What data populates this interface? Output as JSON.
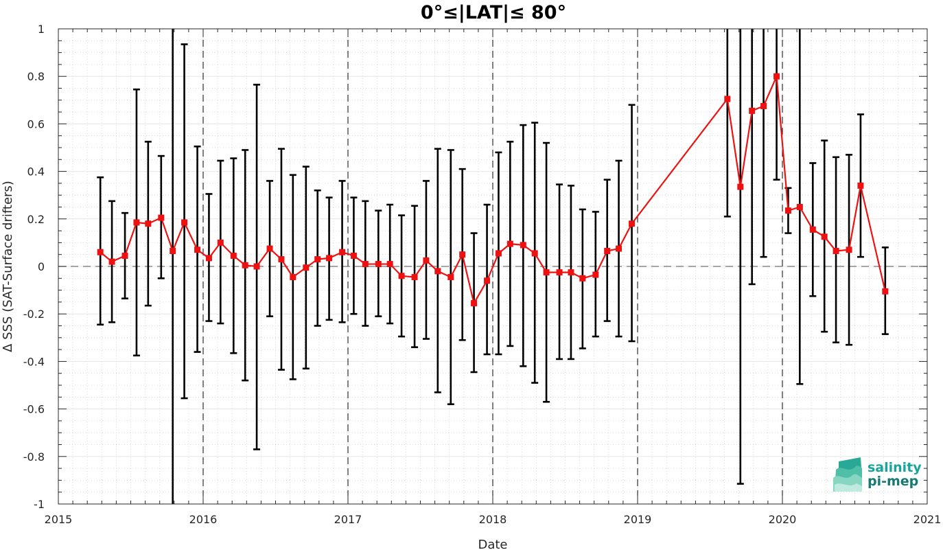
{
  "chart_data": {
    "type": "line",
    "title": "0°≤|LAT|≤ 80°",
    "xlabel": "Date",
    "ylabel": "Δ SSS (SAT-Surface drifters)",
    "xlim": [
      2015,
      2021
    ],
    "ylim": [
      -1,
      1
    ],
    "x_ticks": [
      "2015",
      "2016",
      "2017",
      "2018",
      "2019",
      "2020",
      "2021"
    ],
    "y_ticks": [
      "-1",
      "-0.8",
      "-0.6",
      "-0.4",
      "-0.2",
      "0",
      "0.2",
      "0.4",
      "0.6",
      "0.8",
      "1"
    ],
    "grid": true,
    "reference_line": 0,
    "year_separators": [
      2016,
      2017,
      2018,
      2019,
      2020
    ],
    "series": [
      {
        "color": "#ee1111",
        "marker": "square",
        "errorbar_color": "#000000",
        "points": [
          {
            "x": 2015.29,
            "y": 0.06,
            "lo": -0.245,
            "hi": 0.375
          },
          {
            "x": 2015.37,
            "y": 0.02,
            "lo": -0.235,
            "hi": 0.275
          },
          {
            "x": 2015.46,
            "y": 0.045,
            "lo": -0.135,
            "hi": 0.225
          },
          {
            "x": 2015.54,
            "y": 0.185,
            "lo": -0.375,
            "hi": 0.745
          },
          {
            "x": 2015.62,
            "y": 0.18,
            "lo": -0.165,
            "hi": 0.525
          },
          {
            "x": 2015.71,
            "y": 0.205,
            "lo": -0.05,
            "hi": 0.465
          },
          {
            "x": 2015.79,
            "y": 0.065,
            "lo": -1.0,
            "hi": 1.0
          },
          {
            "x": 2015.87,
            "y": 0.185,
            "lo": -0.555,
            "hi": 0.935
          },
          {
            "x": 2015.96,
            "y": 0.07,
            "lo": -0.36,
            "hi": 0.505
          },
          {
            "x": 2016.04,
            "y": 0.035,
            "lo": -0.23,
            "hi": 0.305
          },
          {
            "x": 2016.12,
            "y": 0.1,
            "lo": -0.24,
            "hi": 0.445
          },
          {
            "x": 2016.21,
            "y": 0.045,
            "lo": -0.365,
            "hi": 0.455
          },
          {
            "x": 2016.29,
            "y": 0.005,
            "lo": -0.48,
            "hi": 0.49
          },
          {
            "x": 2016.37,
            "y": 0.0,
            "lo": -0.77,
            "hi": 0.765
          },
          {
            "x": 2016.46,
            "y": 0.075,
            "lo": -0.21,
            "hi": 0.36
          },
          {
            "x": 2016.54,
            "y": 0.03,
            "lo": -0.435,
            "hi": 0.495
          },
          {
            "x": 2016.62,
            "y": -0.045,
            "lo": -0.475,
            "hi": 0.385
          },
          {
            "x": 2016.71,
            "y": -0.005,
            "lo": -0.43,
            "hi": 0.42
          },
          {
            "x": 2016.79,
            "y": 0.03,
            "lo": -0.25,
            "hi": 0.32
          },
          {
            "x": 2016.87,
            "y": 0.035,
            "lo": -0.225,
            "hi": 0.29
          },
          {
            "x": 2016.96,
            "y": 0.06,
            "lo": -0.235,
            "hi": 0.36
          },
          {
            "x": 2017.04,
            "y": 0.045,
            "lo": -0.2,
            "hi": 0.29
          },
          {
            "x": 2017.12,
            "y": 0.01,
            "lo": -0.25,
            "hi": 0.275
          },
          {
            "x": 2017.21,
            "y": 0.01,
            "lo": -0.21,
            "hi": 0.235
          },
          {
            "x": 2017.29,
            "y": 0.01,
            "lo": -0.24,
            "hi": 0.26
          },
          {
            "x": 2017.37,
            "y": -0.04,
            "lo": -0.295,
            "hi": 0.215
          },
          {
            "x": 2017.46,
            "y": -0.045,
            "lo": -0.34,
            "hi": 0.255
          },
          {
            "x": 2017.54,
            "y": 0.025,
            "lo": -0.305,
            "hi": 0.36
          },
          {
            "x": 2017.62,
            "y": -0.02,
            "lo": -0.53,
            "hi": 0.495
          },
          {
            "x": 2017.71,
            "y": -0.045,
            "lo": -0.58,
            "hi": 0.49
          },
          {
            "x": 2017.79,
            "y": 0.05,
            "lo": -0.31,
            "hi": 0.41
          },
          {
            "x": 2017.87,
            "y": -0.155,
            "lo": -0.445,
            "hi": 0.14
          },
          {
            "x": 2017.96,
            "y": -0.06,
            "lo": -0.37,
            "hi": 0.26
          },
          {
            "x": 2018.04,
            "y": 0.055,
            "lo": -0.37,
            "hi": 0.48
          },
          {
            "x": 2018.12,
            "y": 0.095,
            "lo": -0.335,
            "hi": 0.525
          },
          {
            "x": 2018.21,
            "y": 0.09,
            "lo": -0.42,
            "hi": 0.595
          },
          {
            "x": 2018.29,
            "y": 0.055,
            "lo": -0.49,
            "hi": 0.605
          },
          {
            "x": 2018.37,
            "y": -0.025,
            "lo": -0.57,
            "hi": 0.52
          },
          {
            "x": 2018.46,
            "y": -0.025,
            "lo": -0.39,
            "hi": 0.345
          },
          {
            "x": 2018.54,
            "y": -0.025,
            "lo": -0.39,
            "hi": 0.34
          },
          {
            "x": 2018.62,
            "y": -0.05,
            "lo": -0.345,
            "hi": 0.24
          },
          {
            "x": 2018.71,
            "y": -0.035,
            "lo": -0.295,
            "hi": 0.23
          },
          {
            "x": 2018.79,
            "y": 0.065,
            "lo": -0.23,
            "hi": 0.365
          },
          {
            "x": 2018.87,
            "y": 0.075,
            "lo": -0.295,
            "hi": 0.445
          },
          {
            "x": 2018.96,
            "y": 0.18,
            "lo": -0.315,
            "hi": 0.68
          },
          {
            "x": 2019.62,
            "y": 0.705,
            "lo": 0.21,
            "hi": 1.0
          },
          {
            "x": 2019.71,
            "y": 0.335,
            "lo": -0.915,
            "hi": 1.0
          },
          {
            "x": 2019.79,
            "y": 0.655,
            "lo": -0.075,
            "hi": 1.0
          },
          {
            "x": 2019.87,
            "y": 0.675,
            "lo": 0.04,
            "hi": 1.0
          },
          {
            "x": 2019.96,
            "y": 0.8,
            "lo": 0.365,
            "hi": 1.0
          },
          {
            "x": 2020.04,
            "y": 0.235,
            "lo": 0.14,
            "hi": 0.33
          },
          {
            "x": 2020.12,
            "y": 0.25,
            "lo": -0.495,
            "hi": 1.0
          },
          {
            "x": 2020.21,
            "y": 0.155,
            "lo": -0.125,
            "hi": 0.435
          },
          {
            "x": 2020.29,
            "y": 0.125,
            "lo": -0.275,
            "hi": 0.53
          },
          {
            "x": 2020.37,
            "y": 0.065,
            "lo": -0.32,
            "hi": 0.46
          },
          {
            "x": 2020.46,
            "y": 0.07,
            "lo": -0.33,
            "hi": 0.47
          },
          {
            "x": 2020.54,
            "y": 0.34,
            "lo": 0.04,
            "hi": 0.64
          },
          {
            "x": 2020.71,
            "y": -0.105,
            "lo": -0.285,
            "hi": 0.08
          }
        ]
      }
    ]
  },
  "logo": {
    "line1": "salinity",
    "line2": "pi-mep",
    "color1": "#1aa59a",
    "color2": "#147a73"
  },
  "colors": {
    "line": "#ee1111",
    "errorbar": "#000000",
    "grid_major": "#e6e6e6",
    "grid_minor": "#d0d0d0",
    "axis": "#262626"
  }
}
